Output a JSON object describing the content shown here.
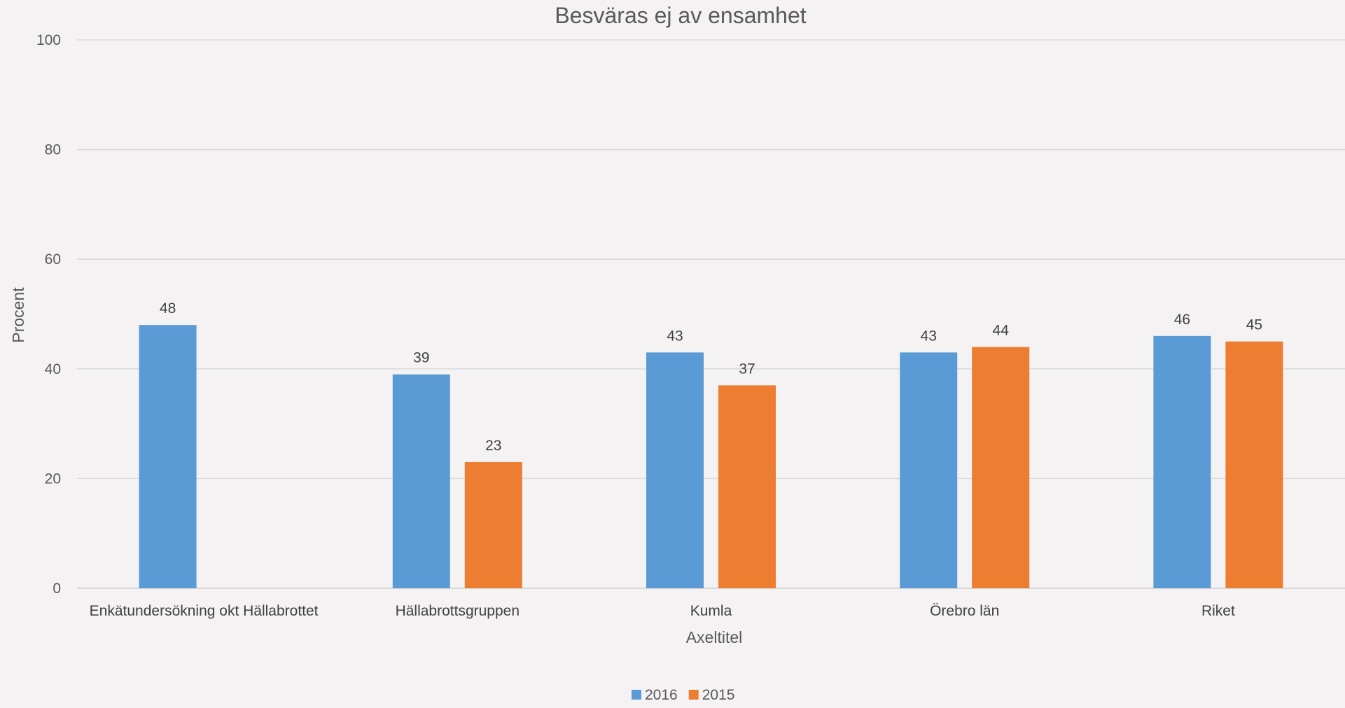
{
  "chart_data": {
    "type": "bar",
    "title": "Besväras ej av ensamhet",
    "xlabel": "Axeltitel",
    "ylabel": "Procent",
    "ylim": [
      0,
      100
    ],
    "yticks": [
      0,
      20,
      40,
      60,
      80,
      100
    ],
    "grid": true,
    "legend_position": "bottom",
    "categories": [
      "Enkätundersökning okt Hällabrottet",
      "Hällabrottsgruppen",
      "Kumla",
      "Örebro län",
      "Riket"
    ],
    "series": [
      {
        "name": "2016",
        "color": "#5b9bd5",
        "values": [
          48,
          39,
          43,
          43,
          46
        ]
      },
      {
        "name": "2015",
        "color": "#ed7d31",
        "values": [
          null,
          23,
          37,
          44,
          45
        ]
      }
    ]
  }
}
